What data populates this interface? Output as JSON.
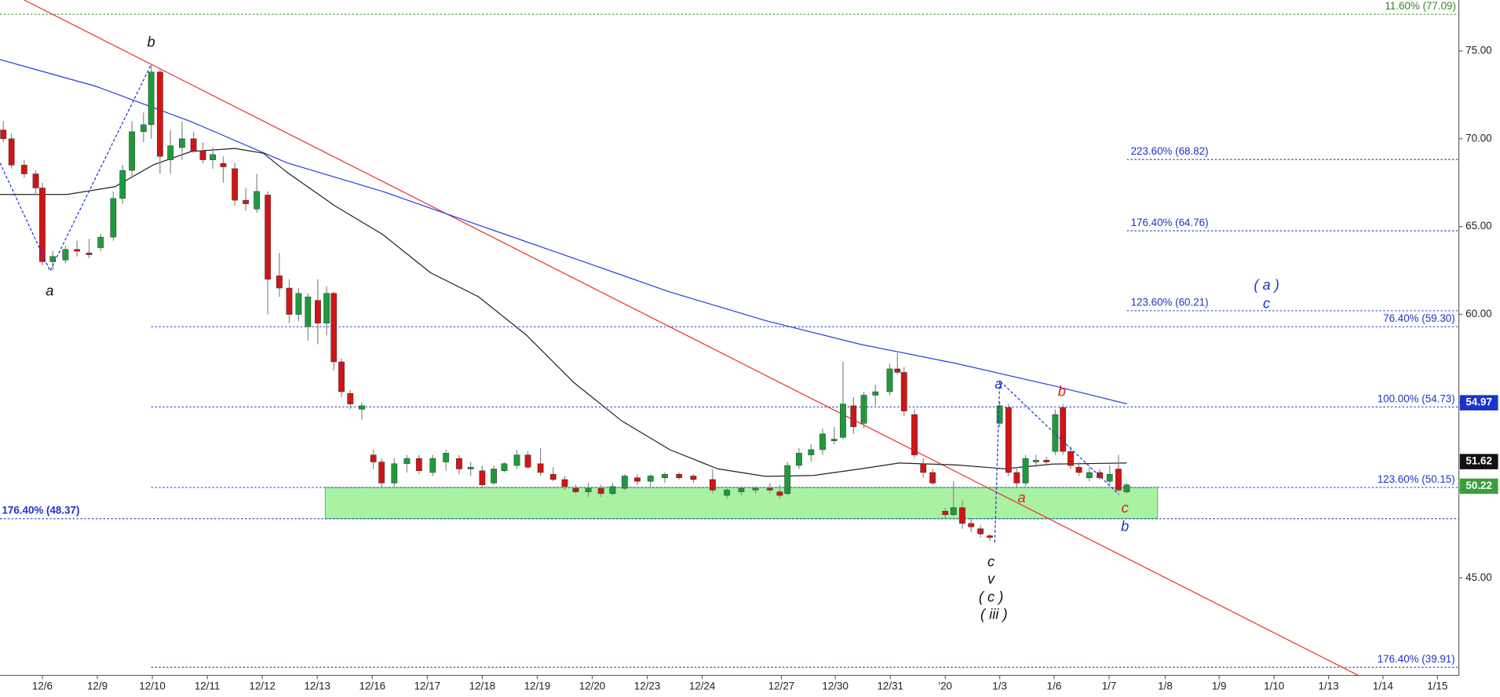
{
  "chart_data": {
    "type": "candlestick",
    "xlim": [
      -0.77,
      25.76
    ],
    "ylim": [
      39.45,
      77.9
    ],
    "xticks": [
      {
        "value": 0,
        "label": "12/6"
      },
      {
        "value": 1,
        "label": "12/9"
      },
      {
        "value": 2,
        "label": "12/10"
      },
      {
        "value": 3,
        "label": "12/11"
      },
      {
        "value": 4,
        "label": "12/12"
      },
      {
        "value": 5,
        "label": "12/13"
      },
      {
        "value": 6,
        "label": "12/16"
      },
      {
        "value": 7,
        "label": "12/17"
      },
      {
        "value": 8,
        "label": "12/18"
      },
      {
        "value": 9,
        "label": "12/19"
      },
      {
        "value": 10,
        "label": "12/20"
      },
      {
        "value": 11,
        "label": "12/23"
      },
      {
        "value": 12,
        "label": "12/24"
      },
      {
        "value": 13.44,
        "label": "12/27"
      },
      {
        "value": 14.42,
        "label": "12/30"
      },
      {
        "value": 15.42,
        "label": "12/31"
      },
      {
        "value": 16.42,
        "label": "'20"
      },
      {
        "value": 17.41,
        "label": "1/3"
      },
      {
        "value": 18.4,
        "label": "1/6"
      },
      {
        "value": 19.4,
        "label": "1/7"
      },
      {
        "value": 20.42,
        "label": "1/8"
      },
      {
        "value": 21.4,
        "label": "1/9"
      },
      {
        "value": 22.4,
        "label": "1/10"
      },
      {
        "value": 23.39,
        "label": "1/13"
      },
      {
        "value": 24.38,
        "label": "1/14"
      },
      {
        "value": 25.37,
        "label": "1/15"
      }
    ],
    "yticks": [
      {
        "value": 45,
        "label": "45.00"
      },
      {
        "value": 50,
        "label": "50.00"
      },
      {
        "value": 55,
        "label": "55.00"
      },
      {
        "value": 60,
        "label": "60.00"
      },
      {
        "value": 65,
        "label": "65.00"
      },
      {
        "value": 70,
        "label": "70.00"
      },
      {
        "value": 75,
        "label": "75.00"
      }
    ],
    "up_color": "#1f9a3a",
    "down_color": "#d01515",
    "x": [
      -0.71,
      -0.56,
      -0.33,
      -0.12,
      0,
      0.19,
      0.42,
      0.63,
      0.85,
      1.06,
      1.29,
      1.46,
      1.63,
      1.84,
      1.98,
      2.14,
      2.33,
      2.54,
      2.75,
      2.92,
      3.1,
      3.29,
      3.5,
      3.7,
      3.9,
      4.1,
      4.31,
      4.49,
      4.66,
      4.83,
      5.01,
      5.17,
      5.3,
      5.44,
      5.6,
      5.81,
      6.02,
      6.17,
      6.4,
      6.63,
      6.85,
      7.1,
      7.34,
      7.58,
      7.79,
      8.0,
      8.21,
      8.4,
      8.63,
      8.83,
      9.06,
      9.29,
      9.5,
      9.7,
      9.93,
      10.16,
      10.37,
      10.59,
      10.82,
      11.06,
      11.32,
      11.58,
      11.84,
      12.19,
      12.45,
      12.71,
      12.97,
      13.23,
      13.41,
      13.55,
      13.76,
      13.98,
      14.19,
      14.4,
      14.56,
      14.75,
      14.94,
      15.15,
      15.41,
      15.55,
      15.67,
      15.86,
      16.02,
      16.19,
      16.42,
      16.57,
      16.73,
      16.89,
      17.06,
      17.23,
      17.41,
      17.57,
      17.72,
      17.88,
      18.07,
      18.26,
      18.42,
      18.56,
      18.7,
      18.85,
      19.04,
      19.23,
      19.41,
      19.57,
      19.72
    ],
    "open": [
      70.5,
      70.0,
      68.5,
      68.0,
      67.2,
      63.0,
      63.1,
      63.7,
      63.5,
      63.8,
      64.4,
      66.6,
      68.2,
      70.4,
      70.8,
      73.8,
      68.8,
      69.5,
      70.0,
      69.3,
      68.8,
      68.6,
      68.3,
      66.5,
      66.0,
      66.8,
      62.2,
      61.5,
      60.0,
      59.3,
      60.8,
      59.5,
      61.2,
      57.3,
      55.5,
      54.6,
      52.0,
      51.6,
      50.4,
      51.5,
      51.8,
      51.0,
      51.6,
      51.8,
      51.2,
      51.1,
      50.4,
      51.1,
      51.4,
      52.0,
      51.5,
      50.9,
      50.6,
      50.1,
      49.9,
      50.1,
      49.8,
      50.1,
      50.7,
      50.5,
      50.7,
      50.9,
      50.8,
      50.6,
      49.7,
      49.9,
      50.0,
      50.1,
      49.9,
      49.8,
      51.4,
      52.0,
      52.3,
      52.8,
      53.0,
      54.8,
      53.8,
      55.4,
      55.6,
      56.9,
      56.7,
      54.3,
      51.5,
      51.0,
      48.8,
      48.6,
      49.0,
      48.1,
      47.8,
      47.4,
      53.8,
      54.7,
      51.0,
      50.4,
      51.6,
      51.7,
      52.2,
      54.7,
      52.2,
      51.3,
      50.7,
      51.0,
      50.5,
      51.2,
      49.9
    ],
    "high": [
      71.0,
      70.3,
      68.8,
      68.2,
      67.5,
      63.6,
      63.9,
      64.2,
      64.3,
      64.6,
      67.0,
      68.5,
      71.0,
      71.5,
      74.2,
      74.0,
      70.5,
      71.0,
      70.4,
      69.8,
      69.5,
      69.0,
      68.6,
      67.2,
      68.0,
      67.0,
      63.5,
      62.0,
      61.5,
      61.2,
      62.0,
      61.6,
      61.3,
      57.5,
      55.7,
      55.0,
      52.3,
      51.8,
      51.8,
      52.0,
      52.0,
      52.0,
      52.3,
      52.0,
      51.6,
      51.4,
      51.4,
      51.6,
      52.3,
      52.2,
      52.4,
      51.3,
      50.8,
      50.3,
      50.4,
      50.3,
      50.4,
      50.9,
      50.9,
      50.9,
      51.0,
      51.0,
      50.9,
      51.2,
      50.1,
      50.2,
      50.2,
      50.4,
      50.3,
      51.6,
      52.4,
      52.6,
      53.5,
      53.6,
      57.3,
      55.3,
      55.6,
      56.0,
      57.2,
      57.8,
      57.0,
      54.6,
      51.8,
      51.2,
      49.0,
      50.5,
      49.4,
      48.4,
      48.0,
      47.5,
      55.0,
      54.9,
      51.3,
      52.0,
      52.0,
      51.9,
      54.6,
      54.9,
      52.5,
      51.6,
      51.3,
      51.2,
      51.4,
      52.0,
      50.4
    ],
    "low": [
      69.8,
      68.3,
      67.8,
      66.8,
      62.8,
      62.5,
      62.9,
      63.3,
      63.2,
      63.6,
      64.2,
      66.3,
      67.8,
      69.8,
      70.0,
      68.0,
      68.0,
      68.8,
      69.2,
      68.6,
      68.3,
      67.5,
      66.2,
      65.9,
      65.8,
      60.0,
      61.0,
      59.5,
      59.6,
      58.5,
      58.3,
      58.8,
      56.8,
      55.3,
      54.6,
      54.0,
      51.2,
      50.1,
      50.2,
      51.0,
      50.9,
      50.8,
      51.1,
      50.9,
      50.8,
      50.1,
      50.3,
      51.0,
      51.2,
      51.2,
      50.8,
      50.5,
      50.0,
      49.8,
      49.6,
      49.6,
      49.7,
      50.0,
      50.3,
      50.2,
      50.4,
      50.6,
      50.4,
      49.8,
      49.5,
      49.7,
      49.8,
      49.8,
      49.5,
      49.7,
      51.2,
      51.6,
      52.0,
      52.6,
      52.9,
      53.2,
      53.5,
      54.8,
      55.4,
      56.6,
      54.2,
      51.8,
      50.7,
      50.3,
      48.4,
      48.5,
      47.8,
      47.6,
      47.3,
      47.1,
      53.6,
      50.8,
      50.1,
      50.2,
      51.3,
      51.5,
      52.0,
      52.0,
      51.2,
      50.8,
      50.5,
      50.6,
      50.3,
      49.9,
      49.8
    ],
    "close": [
      70.0,
      68.5,
      68.0,
      67.2,
      63.0,
      63.3,
      63.7,
      63.6,
      63.4,
      64.4,
      66.6,
      68.2,
      70.4,
      70.8,
      73.8,
      69.0,
      69.6,
      70.0,
      69.3,
      68.8,
      69.1,
      68.4,
      66.5,
      66.3,
      67.0,
      62.0,
      61.5,
      60.0,
      61.2,
      61.0,
      59.5,
      61.2,
      57.3,
      55.6,
      54.9,
      54.8,
      51.6,
      50.4,
      51.5,
      51.8,
      51.1,
      51.8,
      52.1,
      51.2,
      51.3,
      50.3,
      51.2,
      51.5,
      52.0,
      51.3,
      51.0,
      50.6,
      50.2,
      49.9,
      50.1,
      49.8,
      50.2,
      50.8,
      50.5,
      50.8,
      50.9,
      50.7,
      50.6,
      50.0,
      50.0,
      50.1,
      50.1,
      50.0,
      49.7,
      51.4,
      52.1,
      52.3,
      53.2,
      52.9,
      54.9,
      53.6,
      55.4,
      55.6,
      56.9,
      56.7,
      54.5,
      52.0,
      51.0,
      50.4,
      48.6,
      49.0,
      48.1,
      47.9,
      47.5,
      47.3,
      54.8,
      51.0,
      50.4,
      51.8,
      51.7,
      51.6,
      54.3,
      52.2,
      51.4,
      51.0,
      51.0,
      50.7,
      50.9,
      50.0,
      50.3
    ],
    "moving_averages": [
      {
        "color": "#2b3ee0",
        "x": [
          -0.77,
          0.97,
          2.71,
          4.45,
          6.19,
          7.93,
          9.67,
          11.41,
          13.15,
          14.89,
          16.63,
          18.37,
          19.72
        ],
        "values": [
          74.51,
          72.99,
          70.97,
          68.63,
          67.0,
          65.09,
          63.19,
          61.28,
          59.65,
          58.29,
          57.2,
          55.95,
          54.91
        ]
      },
      {
        "color": "#222222",
        "x": [
          -0.77,
          0.45,
          1.32,
          2.02,
          2.71,
          3.5,
          4.02,
          4.45,
          5.32,
          6.19,
          7.06,
          7.93,
          8.8,
          9.67,
          10.54,
          11.41,
          12.28,
          13.15,
          14.02,
          14.89,
          15.58,
          16.63,
          17.5,
          18.37,
          19.72
        ],
        "values": [
          66.83,
          66.83,
          67.27,
          68.52,
          69.28,
          69.45,
          69.18,
          68.09,
          66.18,
          64.55,
          62.37,
          61.01,
          58.83,
          56.11,
          53.93,
          52.3,
          51.21,
          50.78,
          50.83,
          51.21,
          51.54,
          51.43,
          51.21,
          51.48,
          51.54
        ]
      }
    ],
    "trendline": {
      "color": "#e8322a",
      "x": [
        -0.33,
        23.93
      ],
      "y": [
        77.9,
        39.45
      ]
    },
    "wave_paths": [
      {
        "x": [
          -0.77,
          0.14,
          1.98
        ],
        "y": [
          68.63,
          62.48,
          74.24
        ]
      },
      {
        "x": [
          17.32,
          17.41,
          18.54,
          19.58
        ],
        "y": [
          47.02,
          56.22,
          52.84,
          49.74
        ]
      }
    ],
    "levels": [
      {
        "label": "11.60% (77.09)",
        "value": 77.09,
        "color": "#2e8b22"
      },
      {
        "label": "223.60% (68.82)",
        "value": 68.82,
        "color": "#2233cc"
      },
      {
        "label": "176.40% (64.76)",
        "value": 64.76,
        "color": "#2233cc"
      },
      {
        "label": "123.60% (60.21)",
        "value": 60.21,
        "color": "#2233cc"
      },
      {
        "label": "76.40% (59.30)",
        "value": 59.3,
        "color": "#2233cc"
      },
      {
        "label": "100.00% (54.73)",
        "value": 54.73,
        "color": "#2233cc"
      },
      {
        "label": "123.60% (50.15)",
        "value": 50.15,
        "color": "#2233cc"
      },
      {
        "label": "176.40% (48.37)",
        "value": 48.37,
        "color": "#2233cc"
      },
      {
        "label": "176.40% (39.91)",
        "value": 39.91,
        "color": "#2233cc"
      }
    ],
    "price_tags": [
      {
        "value": 54.97,
        "color": "#1a33cc"
      },
      {
        "value": 51.62,
        "color": "#111111"
      },
      {
        "value": 50.22,
        "color": "#3a9e3a"
      }
    ],
    "annotations": [
      {
        "text": "b",
        "color": "#111111"
      },
      {
        "text": "a",
        "color": "#111111"
      },
      {
        "text": "a",
        "color": "#1a33cc"
      },
      {
        "text": "b",
        "color": "#e0201a"
      },
      {
        "text": "a",
        "color": "#e0201a"
      },
      {
        "text": "c",
        "color": "#e0201a"
      },
      {
        "text": "b",
        "color": "#1a33cc"
      },
      {
        "text": "c",
        "color": "#111111"
      },
      {
        "text": "v",
        "color": "#111111"
      },
      {
        "text": "( c )",
        "color": "#111111"
      },
      {
        "text": "( iii )",
        "color": "#111111"
      },
      {
        "text": "( a )",
        "color": "#1a33cc"
      },
      {
        "text": "c",
        "color": "#1a33cc"
      }
    ]
  }
}
